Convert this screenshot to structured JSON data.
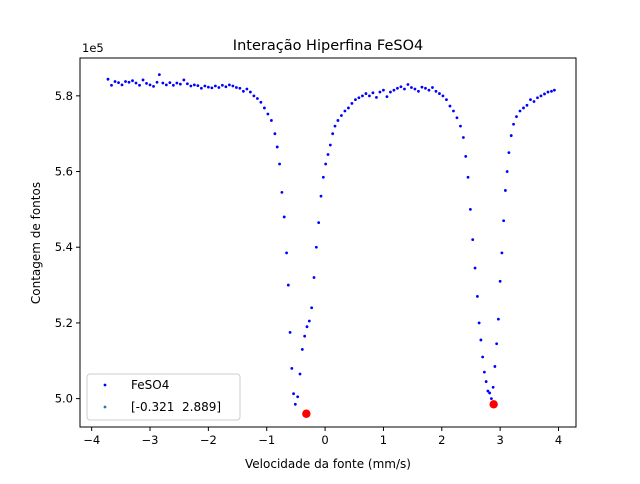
{
  "chart_data": {
    "type": "scatter",
    "title": "Interação Hiperfina FeSO4",
    "xlabel": "Velocidade da fonte (mm/s)",
    "ylabel": "Contagem de fontos",
    "y_offset_label": "1e5",
    "xlim": [
      -4.2,
      4.3
    ],
    "ylim": [
      4.925,
      5.9
    ],
    "x_ticks": [
      -4,
      -3,
      -2,
      -1,
      0,
      1,
      2,
      3,
      4
    ],
    "x_tick_labels": [
      "−4",
      "−3",
      "−2",
      "−1",
      "0",
      "1",
      "2",
      "3",
      "4"
    ],
    "y_ticks": [
      5.0,
      5.2,
      5.4,
      5.6,
      5.8
    ],
    "y_tick_labels": [
      "5.0",
      "5.2",
      "5.4",
      "5.6",
      "5.8"
    ],
    "grid": false,
    "legend_position": "lower-left",
    "series": [
      {
        "name": "FeSO4",
        "color": "#0000ff",
        "marker": "point",
        "points": [
          [
            -3.72,
            5.844
          ],
          [
            -3.66,
            5.828
          ],
          [
            -3.6,
            5.838
          ],
          [
            -3.54,
            5.835
          ],
          [
            -3.48,
            5.829
          ],
          [
            -3.42,
            5.838
          ],
          [
            -3.36,
            5.836
          ],
          [
            -3.3,
            5.84
          ],
          [
            -3.24,
            5.834
          ],
          [
            -3.18,
            5.828
          ],
          [
            -3.12,
            5.842
          ],
          [
            -3.06,
            5.833
          ],
          [
            -3.0,
            5.829
          ],
          [
            -2.94,
            5.825
          ],
          [
            -2.88,
            5.836
          ],
          [
            -2.84,
            5.856
          ],
          [
            -2.78,
            5.834
          ],
          [
            -2.72,
            5.829
          ],
          [
            -2.66,
            5.835
          ],
          [
            -2.6,
            5.828
          ],
          [
            -2.54,
            5.834
          ],
          [
            -2.48,
            5.831
          ],
          [
            -2.42,
            5.842
          ],
          [
            -2.36,
            5.832
          ],
          [
            -2.3,
            5.826
          ],
          [
            -2.24,
            5.829
          ],
          [
            -2.18,
            5.827
          ],
          [
            -2.12,
            5.82
          ],
          [
            -2.06,
            5.826
          ],
          [
            -2.0,
            5.823
          ],
          [
            -1.94,
            5.821
          ],
          [
            -1.88,
            5.826
          ],
          [
            -1.82,
            5.822
          ],
          [
            -1.76,
            5.828
          ],
          [
            -1.7,
            5.824
          ],
          [
            -1.64,
            5.829
          ],
          [
            -1.58,
            5.826
          ],
          [
            -1.52,
            5.822
          ],
          [
            -1.46,
            5.82
          ],
          [
            -1.4,
            5.812
          ],
          [
            -1.34,
            5.818
          ],
          [
            -1.28,
            5.81
          ],
          [
            -1.22,
            5.8
          ],
          [
            -1.16,
            5.793
          ],
          [
            -1.1,
            5.783
          ],
          [
            -1.04,
            5.768
          ],
          [
            -0.98,
            5.752
          ],
          [
            -0.92,
            5.735
          ],
          [
            -0.86,
            5.7
          ],
          [
            -0.82,
            5.665
          ],
          [
            -0.78,
            5.62
          ],
          [
            -0.74,
            5.545
          ],
          [
            -0.7,
            5.48
          ],
          [
            -0.66,
            5.385
          ],
          [
            -0.63,
            5.3
          ],
          [
            -0.6,
            5.175
          ],
          [
            -0.57,
            5.08
          ],
          [
            -0.54,
            5.013
          ],
          [
            -0.51,
            4.985
          ],
          [
            -0.47,
            5.005
          ],
          [
            -0.43,
            5.065
          ],
          [
            -0.39,
            5.13
          ],
          [
            -0.35,
            5.165
          ],
          [
            -0.31,
            5.19
          ],
          [
            -0.27,
            5.205
          ],
          [
            -0.23,
            5.24
          ],
          [
            -0.19,
            5.32
          ],
          [
            -0.15,
            5.4
          ],
          [
            -0.11,
            5.465
          ],
          [
            -0.07,
            5.535
          ],
          [
            -0.03,
            5.585
          ],
          [
            0.01,
            5.62
          ],
          [
            0.05,
            5.645
          ],
          [
            0.09,
            5.67
          ],
          [
            0.13,
            5.7
          ],
          [
            0.17,
            5.72
          ],
          [
            0.22,
            5.735
          ],
          [
            0.28,
            5.748
          ],
          [
            0.34,
            5.76
          ],
          [
            0.4,
            5.768
          ],
          [
            0.46,
            5.78
          ],
          [
            0.52,
            5.79
          ],
          [
            0.58,
            5.795
          ],
          [
            0.64,
            5.8
          ],
          [
            0.7,
            5.806
          ],
          [
            0.76,
            5.8
          ],
          [
            0.82,
            5.808
          ],
          [
            0.88,
            5.796
          ],
          [
            0.94,
            5.81
          ],
          [
            1.0,
            5.815
          ],
          [
            1.06,
            5.798
          ],
          [
            1.12,
            5.81
          ],
          [
            1.18,
            5.815
          ],
          [
            1.24,
            5.82
          ],
          [
            1.3,
            5.824
          ],
          [
            1.36,
            5.818
          ],
          [
            1.42,
            5.83
          ],
          [
            1.48,
            5.822
          ],
          [
            1.54,
            5.818
          ],
          [
            1.6,
            5.812
          ],
          [
            1.66,
            5.823
          ],
          [
            1.72,
            5.82
          ],
          [
            1.78,
            5.815
          ],
          [
            1.84,
            5.822
          ],
          [
            1.9,
            5.812
          ],
          [
            1.96,
            5.806
          ],
          [
            2.02,
            5.8
          ],
          [
            2.08,
            5.79
          ],
          [
            2.14,
            5.773
          ],
          [
            2.2,
            5.76
          ],
          [
            2.26,
            5.742
          ],
          [
            2.32,
            5.72
          ],
          [
            2.37,
            5.69
          ],
          [
            2.41,
            5.64
          ],
          [
            2.45,
            5.585
          ],
          [
            2.49,
            5.5
          ],
          [
            2.53,
            5.42
          ],
          [
            2.57,
            5.345
          ],
          [
            2.61,
            5.27
          ],
          [
            2.64,
            5.2
          ],
          [
            2.67,
            5.155
          ],
          [
            2.7,
            5.11
          ],
          [
            2.73,
            5.07
          ],
          [
            2.76,
            5.045
          ],
          [
            2.79,
            5.02
          ],
          [
            2.82,
            5.015
          ],
          [
            2.85,
            5.0
          ],
          [
            2.88,
            5.03
          ],
          [
            2.91,
            5.085
          ],
          [
            2.94,
            5.145
          ],
          [
            2.97,
            5.21
          ],
          [
            3.0,
            5.31
          ],
          [
            3.03,
            5.385
          ],
          [
            3.06,
            5.47
          ],
          [
            3.09,
            5.55
          ],
          [
            3.12,
            5.6
          ],
          [
            3.15,
            5.65
          ],
          [
            3.19,
            5.695
          ],
          [
            3.23,
            5.725
          ],
          [
            3.28,
            5.745
          ],
          [
            3.34,
            5.76
          ],
          [
            3.4,
            5.768
          ],
          [
            3.46,
            5.775
          ],
          [
            3.52,
            5.79
          ],
          [
            3.58,
            5.785
          ],
          [
            3.64,
            5.795
          ],
          [
            3.7,
            5.8
          ],
          [
            3.76,
            5.805
          ],
          [
            3.82,
            5.81
          ],
          [
            3.88,
            5.812
          ],
          [
            3.93,
            5.815
          ]
        ]
      },
      {
        "name": "[-0.321  2.889]",
        "color": "#1f77b4",
        "marker": "point",
        "points": []
      }
    ],
    "highlighted_minima": {
      "color": "#ff0000",
      "points": [
        [
          -0.321,
          4.96
        ],
        [
          2.889,
          4.985
        ]
      ]
    }
  }
}
